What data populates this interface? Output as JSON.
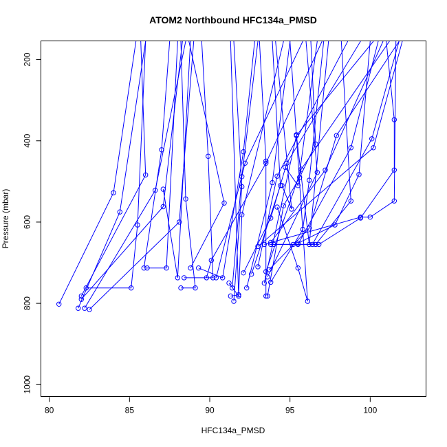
{
  "chart_data": {
    "type": "line",
    "title": "ATOM2 Northbound HFC134a_PMSD",
    "xlabel": "HFC134a_PMSD",
    "ylabel": "Pressure (mbar)",
    "xlim": [
      79.5,
      103.5
    ],
    "ylim": [
      1030,
      155
    ],
    "y_reversed": true,
    "x_ticks": [
      80,
      85,
      90,
      95,
      100
    ],
    "y_ticks": [
      200,
      400,
      600,
      800,
      1000
    ],
    "grid": false,
    "legend": "none",
    "color": "#0000ff",
    "marker": "open-circle",
    "series": [
      {
        "values": [
          [
            80.6,
            802
          ],
          [
            84.0,
            528
          ],
          [
            85.4,
            155
          ]
        ]
      },
      {
        "values": [
          [
            81.8,
            812
          ],
          [
            84.4,
            575
          ],
          [
            86.0,
            155
          ]
        ]
      },
      {
        "values": [
          [
            82.0,
            782
          ],
          [
            86.0,
            484
          ],
          [
            85.7,
            155
          ]
        ]
      },
      {
        "values": [
          [
            82.2,
            812
          ],
          [
            86.6,
            522
          ],
          [
            88.5,
            155
          ]
        ]
      },
      {
        "values": [
          [
            82.3,
            762
          ],
          [
            85.1,
            762
          ],
          [
            85.5,
            607
          ],
          [
            86.0,
            155
          ]
        ]
      },
      {
        "values": [
          [
            82.5,
            815
          ],
          [
            88.1,
            600
          ],
          [
            89.0,
            155
          ]
        ]
      },
      {
        "values": [
          [
            82.0,
            790
          ],
          [
            87.1,
            562
          ],
          [
            88.3,
            155
          ]
        ]
      },
      {
        "values": [
          [
            86.1,
            713
          ],
          [
            87.3,
            713
          ],
          [
            88.0,
            155
          ]
        ]
      },
      {
        "values": [
          [
            85.9,
            713
          ],
          [
            87.0,
            422
          ],
          [
            87.5,
            155
          ]
        ]
      },
      {
        "values": [
          [
            87.1,
            519
          ],
          [
            88.0,
            737
          ],
          [
            88.8,
            155
          ]
        ]
      },
      {
        "values": [
          [
            88.2,
            762
          ],
          [
            89.1,
            762
          ],
          [
            88.5,
            543
          ],
          [
            88.2,
            155
          ]
        ]
      },
      {
        "values": [
          [
            88.4,
            737
          ],
          [
            90.2,
            737
          ],
          [
            89.9,
            438
          ],
          [
            89.5,
            155
          ]
        ]
      },
      {
        "values": [
          [
            88.8,
            713
          ],
          [
            90.9,
            553
          ],
          [
            88.7,
            155
          ]
        ]
      },
      {
        "values": [
          [
            89.3,
            713
          ],
          [
            90.8,
            737
          ],
          [
            92.1,
            427
          ],
          [
            92.8,
            155
          ]
        ]
      },
      {
        "values": [
          [
            89.8,
            737
          ],
          [
            90.1,
            694
          ],
          [
            93.5,
            455
          ],
          [
            97.0,
            155
          ]
        ]
      },
      {
        "values": [
          [
            90.4,
            737
          ],
          [
            92.2,
            455
          ],
          [
            95.8,
            155
          ]
        ]
      },
      {
        "values": [
          [
            91.2,
            750
          ],
          [
            91.8,
            782
          ],
          [
            91.3,
            155
          ]
        ]
      },
      {
        "values": [
          [
            91.4,
            762
          ],
          [
            92.0,
            488
          ],
          [
            93.0,
            155
          ]
        ]
      },
      {
        "values": [
          [
            91.5,
            795
          ],
          [
            92.0,
            513
          ],
          [
            91.5,
            155
          ]
        ]
      },
      {
        "values": [
          [
            91.3,
            782
          ],
          [
            91.8,
            779
          ],
          [
            92.0,
            582
          ],
          [
            94.6,
            155
          ]
        ]
      },
      {
        "values": [
          [
            92.1,
            725
          ],
          [
            93.8,
            590
          ],
          [
            94.8,
            455
          ],
          [
            99.4,
            155
          ]
        ]
      },
      {
        "values": [
          [
            92.3,
            762
          ],
          [
            93.9,
            503
          ],
          [
            95.0,
            155
          ]
        ]
      },
      {
        "values": [
          [
            92.6,
            728
          ],
          [
            94.4,
            510
          ],
          [
            93.9,
            155
          ]
        ]
      },
      {
        "values": [
          [
            93.0,
            710
          ],
          [
            94.2,
            487
          ],
          [
            98.6,
            155
          ]
        ]
      },
      {
        "values": [
          [
            93.4,
            750
          ],
          [
            95.4,
            387
          ],
          [
            100.2,
            155
          ]
        ]
      },
      {
        "values": [
          [
            93.5,
            782
          ],
          [
            93.5,
            450
          ],
          [
            93.1,
            155
          ]
        ]
      },
      {
        "values": [
          [
            93.6,
            782
          ],
          [
            94.6,
            560
          ],
          [
            95.6,
            490
          ],
          [
            96.6,
            408
          ],
          [
            96.3,
            155
          ]
        ]
      },
      {
        "values": [
          [
            93.5,
            722
          ],
          [
            95.7,
            470
          ],
          [
            101.2,
            155
          ]
        ]
      },
      {
        "values": [
          [
            93.6,
            735
          ],
          [
            96.7,
            478
          ],
          [
            96.0,
            155
          ]
        ]
      },
      {
        "values": [
          [
            93.8,
            748
          ],
          [
            95.8,
            618
          ],
          [
            96.2,
            497
          ],
          [
            97.1,
            155
          ]
        ]
      },
      {
        "values": [
          [
            93.7,
            717
          ],
          [
            96.2,
            615
          ],
          [
            97.9,
            387
          ],
          [
            101.8,
            155
          ]
        ]
      },
      {
        "values": [
          [
            93.8,
            655
          ],
          [
            95.5,
            655
          ],
          [
            98.8,
            417
          ],
          [
            100.5,
            155
          ]
        ]
      },
      {
        "values": [
          [
            94.0,
            655
          ],
          [
            96.4,
            655
          ],
          [
            100.1,
            395
          ],
          [
            101.8,
            155
          ]
        ]
      },
      {
        "values": [
          [
            94.2,
            563
          ],
          [
            95.5,
            713
          ],
          [
            96.1,
            795
          ],
          [
            95.0,
            155
          ]
        ]
      },
      {
        "values": [
          [
            94.5,
            510
          ],
          [
            95.1,
            568
          ],
          [
            94.1,
            155
          ]
        ]
      },
      {
        "values": [
          [
            94.7,
            465
          ],
          [
            95.5,
            510
          ],
          [
            96.7,
            155
          ]
        ]
      },
      {
        "values": [
          [
            95.4,
            385
          ],
          [
            96.2,
            655
          ],
          [
            97.4,
            155
          ]
        ]
      },
      {
        "values": [
          [
            95.2,
            655
          ],
          [
            96.8,
            655
          ],
          [
            99.4,
            590
          ],
          [
            101.5,
            472
          ],
          [
            101.5,
            348
          ],
          [
            101.0,
            155
          ]
        ]
      },
      {
        "values": [
          [
            96.6,
            655
          ],
          [
            98.8,
            548
          ],
          [
            98.2,
            155
          ]
        ]
      },
      {
        "values": [
          [
            95.5,
            652
          ],
          [
            97.8,
            607
          ],
          [
            99.3,
            483
          ],
          [
            100.0,
            155
          ]
        ]
      },
      {
        "values": [
          [
            93.0,
            660
          ],
          [
            100.2,
            417
          ],
          [
            102.0,
            155
          ]
        ]
      },
      {
        "values": [
          [
            93.4,
            655
          ],
          [
            99.4,
            588
          ],
          [
            100.0,
            588
          ],
          [
            101.5,
            548
          ],
          [
            101.6,
            155
          ]
        ]
      },
      {
        "values": [
          [
            93.8,
            650
          ],
          [
            97.2,
            472
          ],
          [
            100.8,
            155
          ]
        ]
      }
    ]
  }
}
